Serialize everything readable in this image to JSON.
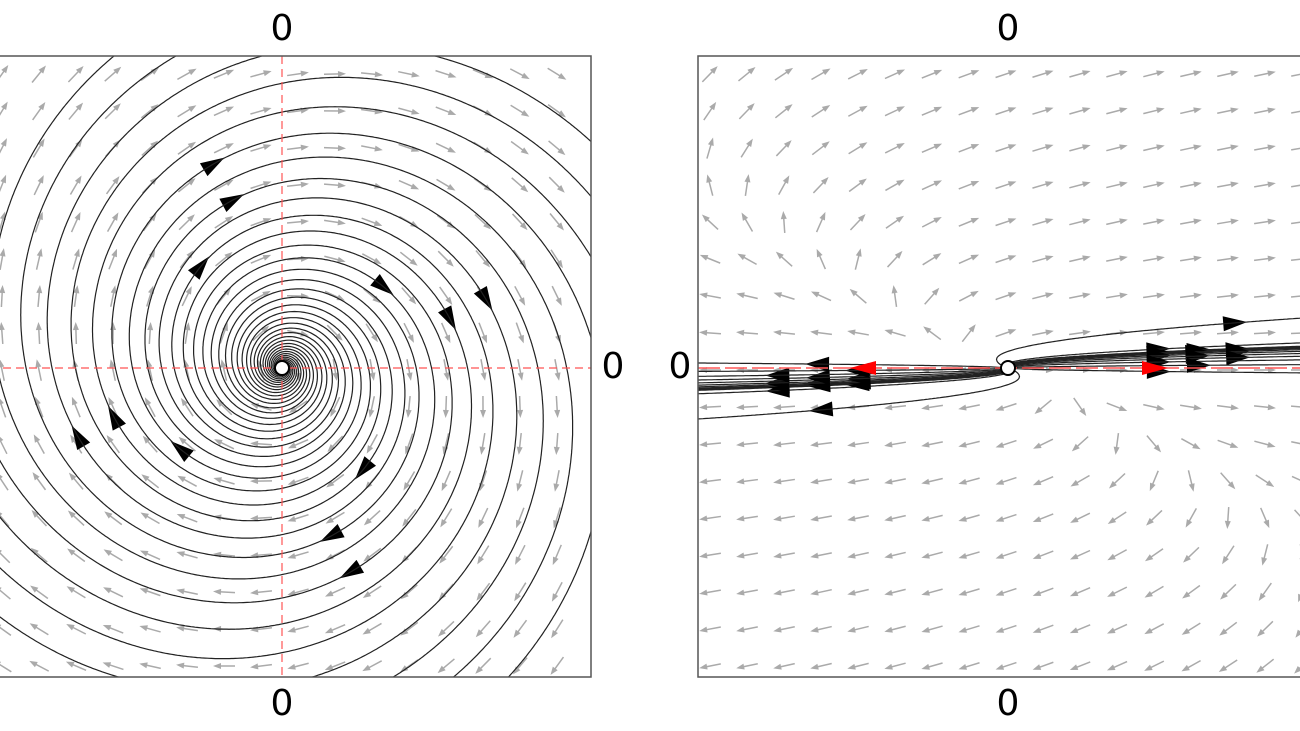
{
  "panels": [
    {
      "labels": {
        "top": "0",
        "right": "0",
        "bottom": "0"
      }
    },
    {
      "labels": {
        "top": "0",
        "left": "0",
        "bottom": "0"
      }
    }
  ]
}
